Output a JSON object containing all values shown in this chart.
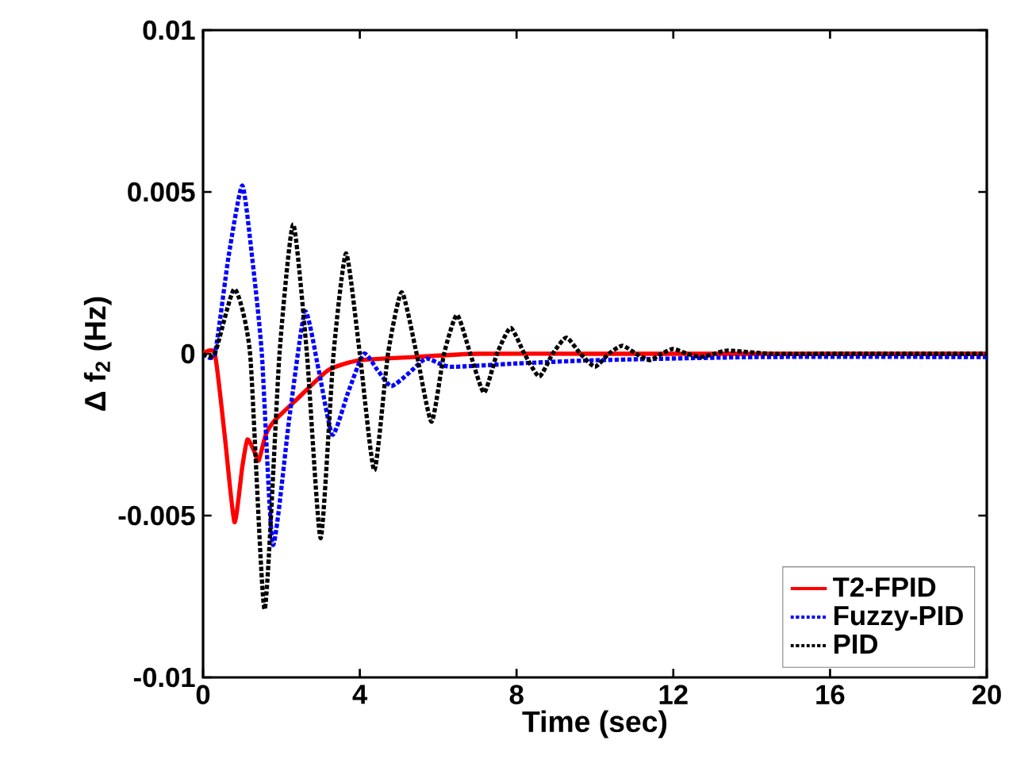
{
  "chart_data": {
    "type": "line",
    "xlabel": "Time (sec)",
    "ylabel": "Δ f$_{2}$ (Hz)",
    "xlim": [
      0,
      20
    ],
    "ylim": [
      -0.01,
      0.01
    ],
    "xticks": [
      0,
      4,
      8,
      12,
      16,
      20
    ],
    "yticks": [
      -0.01,
      -0.005,
      0,
      0.005,
      0.01
    ],
    "legend": "bottom right",
    "grid": false,
    "series": [
      {
        "name": "T2-FPID",
        "color": "#ff0000",
        "line_style": "solid",
        "x": [
          0,
          0.3,
          0.55,
          0.8,
          1.0,
          1.13,
          1.3,
          1.42,
          1.6,
          1.83,
          2.4,
          3.2,
          4.0,
          5.4,
          7,
          10,
          14,
          20
        ],
        "values": [
          0,
          0,
          -0.0025,
          -0.0052,
          -0.0035,
          -0.00265,
          -0.003,
          -0.0033,
          -0.0025,
          -0.00206,
          -0.0014,
          -0.0005,
          -0.0002,
          -0.0001,
          0,
          0,
          0,
          0
        ]
      },
      {
        "name": "Fuzzy-PID",
        "color": "#0000ff",
        "line_style": "dotted",
        "x": [
          0,
          0.3,
          0.65,
          1.0,
          1.25,
          1.5,
          1.78,
          2.2,
          2.6,
          2.95,
          3.3,
          3.7,
          4.1,
          4.45,
          4.8,
          5.25,
          5.7,
          6.3,
          8,
          10,
          14.3,
          20
        ],
        "values": [
          0,
          0,
          0.003,
          0.0052,
          0.003,
          0,
          -0.0059,
          -0.002,
          0.0013,
          -0.0005,
          -0.0025,
          -0.0012,
          0,
          -0.0005,
          -0.001,
          -0.0006,
          -0.00015,
          -0.0004,
          -0.0003,
          -0.0002,
          -0.0001,
          -0.0001
        ]
      },
      {
        "name": "PID",
        "color": "#000000",
        "line_style": "dotted",
        "x": [
          0,
          0.3,
          0.8,
          1.2,
          1.57,
          1.95,
          2.3,
          2.65,
          3.0,
          3.33,
          3.65,
          4.0,
          4.37,
          4.72,
          5.07,
          5.45,
          5.83,
          6.15,
          6.48,
          6.82,
          7.17,
          7.5,
          7.85,
          8.2,
          8.58,
          8.92,
          9.27,
          9.63,
          10.0,
          10.35,
          10.7,
          11.05,
          11.4,
          11.7,
          12.0,
          12.35,
          12.7,
          13.05,
          13.4,
          14.5,
          16,
          20
        ],
        "values": [
          0,
          0,
          0.002,
          0,
          -0.0079,
          0,
          0.004,
          0,
          -0.0057,
          0,
          0.0031,
          0,
          -0.0036,
          0,
          0.0019,
          0,
          -0.0021,
          0,
          0.0012,
          0,
          -0.0012,
          0,
          0.0008,
          0,
          -0.0007,
          0,
          0.0005,
          0,
          -0.0004,
          0,
          0.00025,
          0,
          -0.0002,
          0,
          0.00015,
          0,
          -0.0001,
          0,
          0.0001,
          0,
          0,
          0
        ]
      }
    ]
  }
}
